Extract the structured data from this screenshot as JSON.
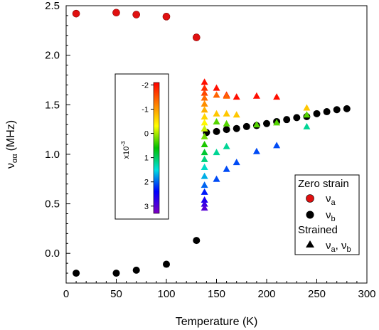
{
  "chart_data": {
    "type": "scatter",
    "xlabel": "Temperature (K)",
    "ylabel": {
      "symbol": "ν",
      "subscript": "αα",
      "unit": "(MHz)"
    },
    "xlim": [
      0,
      300
    ],
    "ylim": [
      -0.3,
      2.5
    ],
    "xticks": [
      "0",
      "50",
      "100",
      "150",
      "200",
      "250",
      "300"
    ],
    "yticks": [
      "0.0",
      "0.5",
      "1.0",
      "1.5",
      "2.0",
      "2.5"
    ],
    "grid": false,
    "legend": {
      "placement": "bottom-right",
      "group1_title": "Zero strain",
      "group2_title": "Strained",
      "entry_a": {
        "symbol": "ν",
        "sub": "a"
      },
      "entry_b": {
        "symbol": "ν",
        "sub": "b"
      },
      "entry_ab": {
        "symbol": "ν",
        "sub1": "a",
        "sep": ", ",
        "sub2": "b"
      }
    },
    "colorbar": {
      "placement": "inset-left",
      "label": "x10",
      "label_exponent": "-3",
      "range": [
        -2.1,
        3.3
      ],
      "ticks": [
        "-2",
        "-1",
        "0",
        "1",
        "2",
        "3"
      ],
      "colormap": [
        "#ff0000",
        "#ff8000",
        "#ffff00",
        "#00c000",
        "#00e0e0",
        "#0000ff",
        "#8000c0"
      ]
    },
    "series": [
      {
        "key": "zero_strain_a",
        "marker": "circle",
        "color": "#e01010",
        "x": [
          10,
          50,
          70,
          100,
          130
        ],
        "y": [
          2.42,
          2.43,
          2.41,
          2.39,
          2.18
        ]
      },
      {
        "key": "zero_strain_b",
        "marker": "circle",
        "color": "#000000",
        "x": [
          10,
          50,
          70,
          100,
          130,
          140,
          150,
          160,
          170,
          180,
          190,
          200,
          210,
          220,
          230,
          240,
          250,
          260,
          270,
          280
        ],
        "y": [
          -0.2,
          -0.2,
          -0.17,
          -0.11,
          0.13,
          1.22,
          1.23,
          1.25,
          1.26,
          1.28,
          1.29,
          1.31,
          1.33,
          1.35,
          1.37,
          1.38,
          1.41,
          1.43,
          1.45,
          1.46
        ]
      },
      {
        "key": "strained",
        "marker": "triangle",
        "color_by": "strain",
        "points": [
          {
            "x": 138,
            "y": 1.73,
            "strain": -2.0
          },
          {
            "x": 138,
            "y": 1.67,
            "strain": -1.8
          },
          {
            "x": 138,
            "y": 1.62,
            "strain": -1.6
          },
          {
            "x": 138,
            "y": 1.57,
            "strain": -1.35
          },
          {
            "x": 138,
            "y": 1.51,
            "strain": -1.1
          },
          {
            "x": 138,
            "y": 1.45,
            "strain": -0.85
          },
          {
            "x": 138,
            "y": 1.38,
            "strain": -0.6
          },
          {
            "x": 138,
            "y": 1.32,
            "strain": -0.35
          },
          {
            "x": 138,
            "y": 1.26,
            "strain": -0.1
          },
          {
            "x": 138,
            "y": 1.18,
            "strain": 0.2
          },
          {
            "x": 138,
            "y": 1.1,
            "strain": 0.5
          },
          {
            "x": 138,
            "y": 1.02,
            "strain": 0.8
          },
          {
            "x": 138,
            "y": 0.95,
            "strain": 1.1
          },
          {
            "x": 138,
            "y": 0.87,
            "strain": 1.4
          },
          {
            "x": 138,
            "y": 0.78,
            "strain": 1.7
          },
          {
            "x": 138,
            "y": 0.69,
            "strain": 2.0
          },
          {
            "x": 138,
            "y": 0.62,
            "strain": 2.3
          },
          {
            "x": 138,
            "y": 0.54,
            "strain": 2.6
          },
          {
            "x": 138,
            "y": 0.5,
            "strain": 2.8
          },
          {
            "x": 138,
            "y": 0.46,
            "strain": 3.0
          },
          {
            "x": 150,
            "y": 1.67,
            "strain": -2.0
          },
          {
            "x": 160,
            "y": 1.6,
            "strain": -2.0
          },
          {
            "x": 170,
            "y": 1.58,
            "strain": -2.0
          },
          {
            "x": 190,
            "y": 1.59,
            "strain": -2.0
          },
          {
            "x": 210,
            "y": 1.58,
            "strain": -2.0
          },
          {
            "x": 150,
            "y": 1.6,
            "strain": -1.4
          },
          {
            "x": 160,
            "y": 1.59,
            "strain": -1.4
          },
          {
            "x": 150,
            "y": 1.41,
            "strain": -0.7
          },
          {
            "x": 160,
            "y": 1.41,
            "strain": -0.7
          },
          {
            "x": 170,
            "y": 1.4,
            "strain": -0.7
          },
          {
            "x": 240,
            "y": 1.47,
            "strain": -0.7
          },
          {
            "x": 150,
            "y": 1.33,
            "strain": 0.3
          },
          {
            "x": 160,
            "y": 1.31,
            "strain": 0.3
          },
          {
            "x": 190,
            "y": 1.3,
            "strain": 0.3
          },
          {
            "x": 210,
            "y": 1.32,
            "strain": 0.3
          },
          {
            "x": 240,
            "y": 1.4,
            "strain": 0.3
          },
          {
            "x": 150,
            "y": 1.02,
            "strain": 1.2
          },
          {
            "x": 160,
            "y": 1.08,
            "strain": 1.2
          },
          {
            "x": 240,
            "y": 1.28,
            "strain": 1.2
          },
          {
            "x": 150,
            "y": 0.75,
            "strain": 2.1
          },
          {
            "x": 160,
            "y": 0.85,
            "strain": 2.1
          },
          {
            "x": 170,
            "y": 0.92,
            "strain": 2.1
          },
          {
            "x": 190,
            "y": 1.03,
            "strain": 2.1
          },
          {
            "x": 210,
            "y": 1.09,
            "strain": 2.1
          }
        ]
      }
    ]
  }
}
